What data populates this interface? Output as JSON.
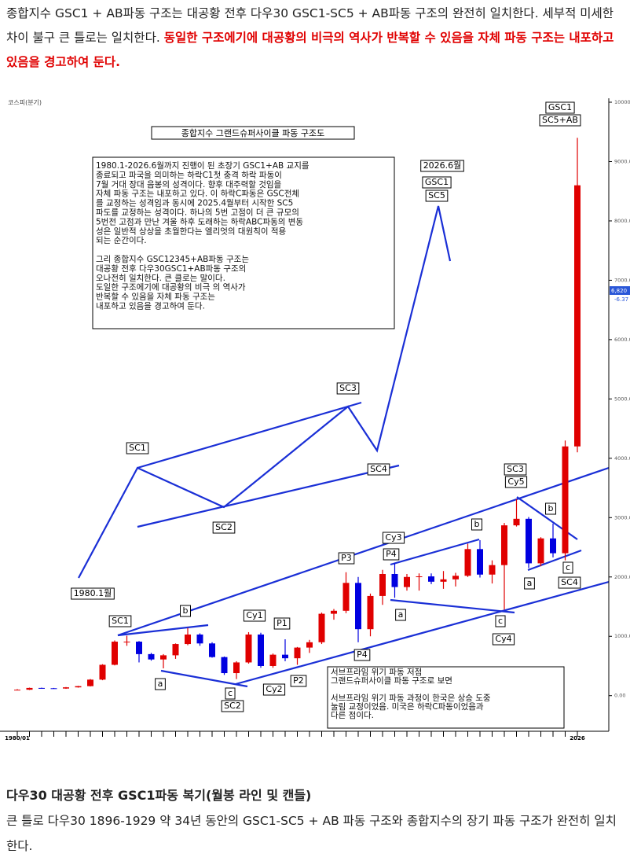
{
  "intro": {
    "plain": "종합지수 GSC1 + AB파동 구조는 대공황 전후 다우30 GSC1-SC5 + AB파동 구조의 완전히 일치한다. 세부적 미세한 차이 불구 큰 틀로는 일치한다. ",
    "emphasis": "동일한 구조에기에 대공황의 비극의 역사가 반복할 수 있음을 자체 파동 구조는 내포하고 있음을 경고하여 둔다."
  },
  "chart_data": {
    "type": "candlestick",
    "source": "코스피(분기)",
    "title": "종합지수 그랜드슈퍼사이클 파동 구조도",
    "x": [
      "1980/01",
      null,
      null,
      null,
      null,
      null,
      null,
      null,
      null,
      null,
      null,
      null,
      null,
      null,
      null,
      null,
      null,
      null,
      null,
      null,
      null,
      null,
      null,
      null,
      null,
      null,
      null,
      null,
      null,
      null,
      null,
      null,
      null,
      null,
      null,
      null,
      null,
      null,
      null,
      null,
      null,
      null,
      null,
      null,
      null,
      null,
      "2026"
    ],
    "open": [
      100,
      100,
      130,
      125,
      120,
      140,
      160,
      270,
      520,
      910,
      910,
      700,
      610,
      680,
      870,
      1030,
      880,
      650,
      380,
      560,
      1030,
      500,
      690,
      630,
      810,
      900,
      1380,
      1430,
      1900,
      1120,
      1680,
      2050,
      1830,
      2000,
      2010,
      1920,
      1960,
      2020,
      2470,
      2040,
      2200,
      2870,
      2980,
      2230,
      2650,
      2400,
      4200
    ],
    "high": [
      110,
      135,
      135,
      130,
      145,
      165,
      280,
      530,
      930,
      1010,
      920,
      720,
      700,
      880,
      1140,
      1050,
      900,
      660,
      580,
      1070,
      1060,
      710,
      950,
      820,
      940,
      1400,
      1460,
      2080,
      2000,
      1720,
      2120,
      2230,
      2050,
      2060,
      2060,
      2100,
      2070,
      2560,
      2620,
      2280,
      2910,
      3310,
      3010,
      2670,
      2900,
      4300,
      9400
    ],
    "low": [
      95,
      95,
      120,
      115,
      115,
      135,
      155,
      260,
      510,
      840,
      560,
      590,
      460,
      620,
      850,
      840,
      640,
      350,
      280,
      540,
      470,
      470,
      580,
      520,
      720,
      870,
      1280,
      1390,
      900,
      1000,
      1530,
      1650,
      1770,
      1770,
      1880,
      1800,
      1840,
      2000,
      1990,
      1890,
      1450,
      2850,
      2150,
      2180,
      2330,
      2280,
      4100
    ],
    "close": [
      100,
      130,
      125,
      120,
      140,
      160,
      270,
      520,
      910,
      910,
      700,
      610,
      680,
      870,
      1030,
      880,
      650,
      380,
      560,
      1030,
      500,
      690,
      630,
      810,
      900,
      1380,
      1430,
      1900,
      1120,
      1680,
      2050,
      1830,
      2000,
      2010,
      1920,
      1960,
      2020,
      2470,
      2040,
      2200,
      2870,
      2980,
      2230,
      2650,
      2400,
      4200,
      8600
    ],
    "up_color": "#e00000",
    "down_color": "#0000e0",
    "ylim": [
      -600,
      10000
    ],
    "yticks": [
      {
        "value": 0,
        "label": "0.00"
      },
      {
        "value": 1000,
        "label": "1000.0"
      },
      {
        "value": 2000,
        "label": "2000.0"
      },
      {
        "value": 3000,
        "label": "3000.0"
      },
      {
        "value": 4000,
        "label": "4000.0"
      },
      {
        "value": 5000,
        "label": "5000.0"
      },
      {
        "value": 6000,
        "label": "6000.0"
      },
      {
        "value": 7000,
        "label": "7000.0"
      },
      {
        "value": 8000,
        "label": "8000.0"
      },
      {
        "value": 9000,
        "label": "9000.0"
      },
      {
        "value": 10000,
        "label": "10000.0"
      }
    ],
    "last_price": {
      "value": 6820,
      "label": "6,820"
    },
    "last_change": "-6.37",
    "wave_labels": [
      "GSC1",
      "SC5+AB",
      "2026.6월",
      "GSC1",
      "SC5",
      "SC1",
      "SC2",
      "SC3",
      "SC4",
      "1980.1월",
      "SC1",
      "b",
      "a",
      "c",
      "SC2",
      "Cy1",
      "P1",
      "Cy2",
      "P2",
      "P3",
      "P4",
      "P4",
      "Cy3",
      "a",
      "b",
      "c",
      "Cy4",
      "SC3",
      "Cy5",
      "b",
      "a",
      "c",
      "SC4"
    ],
    "notes": [
      [
        "1980.1-2026.6월까지 진행이 된 초장기 GSC1+AB 교지를",
        "종료되고 파국을 의미하는 하락C1첫 충격 하락 파동이",
        "7월 거대 장대 음봉의 성격이다. 향후 대주력할 것임을",
        "자체 파동 구조는 내포하고 있다. 이 하락C파동은 GSC전체",
        "를 교정하는 성격임과 동시에 2025.4월부터 시작한 SC5",
        "파도를 교정하는 성격이다. 하나의 5번 고점이 더 큰 규모의",
        "5번전 고점과 만난 겨울 하후 도래하는 하락ABC파동의 변동",
        "성은 일반적 상상을 초월한다는 엘리엇의 대원칙이 적용",
        "되는 순간이다."
      ],
      [
        "그리 종합지수 GSC12345+AB파동 구조는",
        "대공황 전후 다우30GSC1+AB파동 구조의",
        "오나전히 일치한다. 큰 클로는 말이다.",
        "도일한 구조에기에 대공황의 비극 의 역사가",
        "반복할 수 있음을 자체 파동 구조는",
        "내포하고 있음을 경고하여 둔다."
      ]
    ],
    "notes2": [
      [
        "서브프라임 위기 파동 저점",
        "그랜드슈퍼사이클 파동 구조로 보면"
      ],
      [
        "서브프라임 위기 파동 과정이 한국은 상승 도중",
        "눌림 교정이었음. 미국은 하락C파동이었음과",
        "다른 점이다."
      ]
    ]
  },
  "section": {
    "heading": "다우30 대공황 전후 GSC1파동 복기(월봉 라인 및 캔들)",
    "text": "큰 틀로 다우30 1896-1929 약 34년 동안의 GSC1-SC5 + AB 파동 구조와 종합지수의 장기 파동 구조가 완전히 일치한다."
  }
}
